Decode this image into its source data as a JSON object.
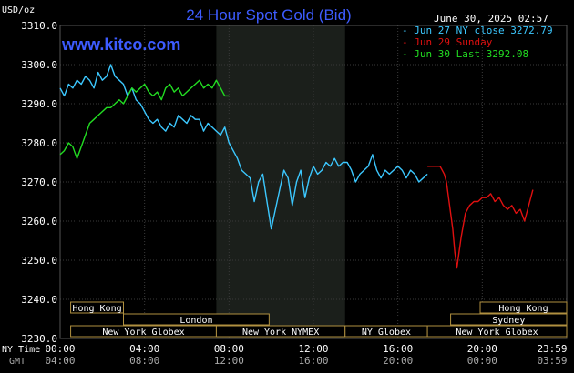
{
  "chart_data": {
    "type": "line",
    "title": "24 Hour Spot Gold (Bid)",
    "site": "www.kitco.com",
    "timestamp": "June 30, 2025 02:57",
    "ylabel": "USD/oz",
    "ylim": [
      3230,
      3310
    ],
    "yticks": [
      "3310.0",
      "3300.0",
      "3290.0",
      "3280.0",
      "3270.0",
      "3260.0",
      "3250.0",
      "3240.0",
      "3230.0"
    ],
    "xticks_ny": [
      "00:00",
      "04:00",
      "08:00",
      "12:00",
      "16:00",
      "20:00",
      "23:59"
    ],
    "xticks_gmt": [
      "04:00",
      "08:00",
      "12:00",
      "16:00",
      "20:00",
      "00:00",
      "03:59"
    ],
    "row_label_ny": "NY Time",
    "row_label_gmt": "GMT",
    "grid": true,
    "legend": [
      {
        "name": "Jun 27 NY close 3272.79",
        "color": "#3cc8ff"
      },
      {
        "name": "Jun 29 Sunday",
        "color": "#e01010"
      },
      {
        "name": "Jun 30 Last 3292.08",
        "color": "#22dd22"
      }
    ],
    "sessions": [
      {
        "label": "Hong Kong",
        "row": 0,
        "start": 0.5,
        "end": 3
      },
      {
        "label": "Hong Kong",
        "row": 0,
        "start": 19.9,
        "end": 24
      },
      {
        "label": "London",
        "row": 1,
        "start": 3,
        "end": 9.9
      },
      {
        "label": "Sydney",
        "row": 1,
        "start": 18.5,
        "end": 24
      },
      {
        "label": "New York Globex",
        "row": 2,
        "start": 0.5,
        "end": 7.4
      },
      {
        "label": "New York NYMEX",
        "row": 2,
        "start": 7.4,
        "end": 13.5
      },
      {
        "label": "NY Globex",
        "row": 2,
        "start": 13.5,
        "end": 17.4
      },
      {
        "label": "New York Globex",
        "row": 2,
        "start": 17.4,
        "end": 24
      }
    ],
    "series": [
      {
        "name": "Jun 27 NY close 3272.79",
        "color": "#3cc8ff",
        "x": [
          0,
          0.2,
          0.4,
          0.6,
          0.8,
          1.0,
          1.2,
          1.4,
          1.6,
          1.8,
          2.0,
          2.2,
          2.4,
          2.6,
          2.8,
          3.0,
          3.2,
          3.4,
          3.6,
          3.8,
          4.0,
          4.2,
          4.4,
          4.6,
          4.8,
          5.0,
          5.2,
          5.4,
          5.6,
          5.8,
          6.0,
          6.2,
          6.4,
          6.6,
          6.8,
          7.0,
          7.2,
          7.4,
          7.6,
          7.8,
          8.0,
          8.2,
          8.4,
          8.6,
          8.8,
          9.0,
          9.2,
          9.4,
          9.6,
          9.8,
          10.0,
          10.2,
          10.4,
          10.6,
          10.8,
          11.0,
          11.2,
          11.4,
          11.6,
          11.8,
          12.0,
          12.2,
          12.4,
          12.6,
          12.8,
          13.0,
          13.2,
          13.4,
          13.6,
          13.8,
          14.0,
          14.2,
          14.4,
          14.6,
          14.8,
          15.0,
          15.2,
          15.4,
          15.6,
          15.8,
          16.0,
          16.2,
          16.4,
          16.6,
          16.8,
          17.0,
          17.2,
          17.4
        ],
        "values": [
          3294,
          3292,
          3295,
          3294,
          3296,
          3295,
          3297,
          3296,
          3294,
          3298,
          3296,
          3297,
          3300,
          3297,
          3296,
          3295,
          3292,
          3294,
          3291,
          3290,
          3288,
          3286,
          3285,
          3286,
          3284,
          3283,
          3285,
          3284,
          3287,
          3286,
          3285,
          3287,
          3286,
          3286,
          3283,
          3285,
          3284,
          3283,
          3282,
          3284,
          3280,
          3278,
          3276,
          3273,
          3272,
          3271,
          3265,
          3270,
          3272,
          3265,
          3258,
          3263,
          3268,
          3273,
          3271,
          3264,
          3270,
          3273,
          3266,
          3271,
          3274,
          3272,
          3273,
          3275,
          3274,
          3276,
          3274,
          3275,
          3275,
          3273,
          3270,
          3272,
          3273,
          3274,
          3277,
          3273,
          3271,
          3273,
          3272,
          3273,
          3274,
          3273,
          3271,
          3273,
          3272,
          3270,
          3271,
          3272
        ]
      },
      {
        "name": "Jun 29 Sunday",
        "color": "#e01010",
        "x": [
          17.4,
          17.6,
          17.8,
          18.0,
          18.1,
          18.2,
          18.3,
          18.4,
          18.5,
          18.6,
          18.7,
          18.8,
          18.9,
          19.0,
          19.2,
          19.4,
          19.6,
          19.8,
          20.0,
          20.2,
          20.4,
          20.6,
          20.8,
          21.0,
          21.2,
          21.4,
          21.6,
          21.8,
          22.0,
          22.2,
          22.4
        ],
        "values": [
          3274,
          3274,
          3274,
          3274,
          3273,
          3272,
          3270,
          3266,
          3262,
          3258,
          3252,
          3248,
          3252,
          3256,
          3262,
          3264,
          3265,
          3265,
          3266,
          3266,
          3267,
          3265,
          3266,
          3264,
          3263,
          3264,
          3262,
          3263,
          3260,
          3264,
          3268
        ]
      },
      {
        "name": "Jun 30 Last 3292.08",
        "color": "#22dd22",
        "x": [
          0,
          0.2,
          0.4,
          0.6,
          0.8,
          1.0,
          1.2,
          1.4,
          1.6,
          1.8,
          2.0,
          2.2,
          2.4,
          2.6,
          2.8,
          3.0,
          3.2,
          3.4,
          3.6,
          3.8,
          4.0,
          4.2,
          4.4,
          4.6,
          4.8,
          5.0,
          5.2,
          5.4,
          5.6,
          5.8,
          6.0,
          6.2,
          6.4,
          6.6,
          6.8,
          7.0,
          7.2,
          7.4,
          7.6,
          7.8,
          8.0
        ],
        "values": [
          3277,
          3278,
          3280,
          3279,
          3276,
          3279,
          3282,
          3285,
          3286,
          3287,
          3288,
          3289,
          3289,
          3290,
          3291,
          3290,
          3292,
          3294,
          3293,
          3294,
          3295,
          3293,
          3292,
          3293,
          3291,
          3294,
          3295,
          3293,
          3294,
          3292,
          3293,
          3294,
          3295,
          3296,
          3294,
          3295,
          3294,
          3296,
          3294,
          3292,
          3292
        ]
      }
    ]
  }
}
